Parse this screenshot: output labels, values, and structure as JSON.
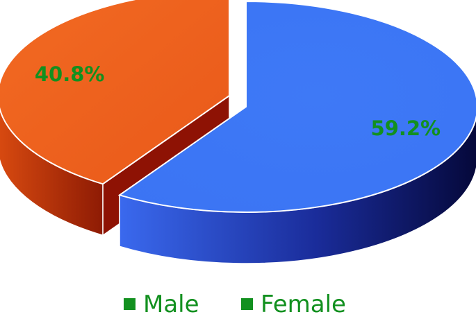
{
  "chart_data": {
    "type": "pie",
    "categories": [
      "Male",
      "Female"
    ],
    "values": [
      59.2,
      40.8
    ],
    "data_labels": [
      "59.2%",
      "40.8%"
    ],
    "title": "",
    "legend_position": "bottom",
    "exploded_slice": "Female",
    "three_d": true
  },
  "legend": {
    "items": [
      {
        "label": "Male",
        "marker_color": "#12901f"
      },
      {
        "label": "Female",
        "marker_color": "#12901f"
      }
    ]
  },
  "colors": {
    "male_top": "#3B74F4",
    "male_side_light": "#3A69EE",
    "male_side_dark": "#05083A",
    "female_top": "#F0641E",
    "female_side_light": "#D84A10",
    "female_side_dark": "#8E1B04",
    "label": "#12901f"
  }
}
